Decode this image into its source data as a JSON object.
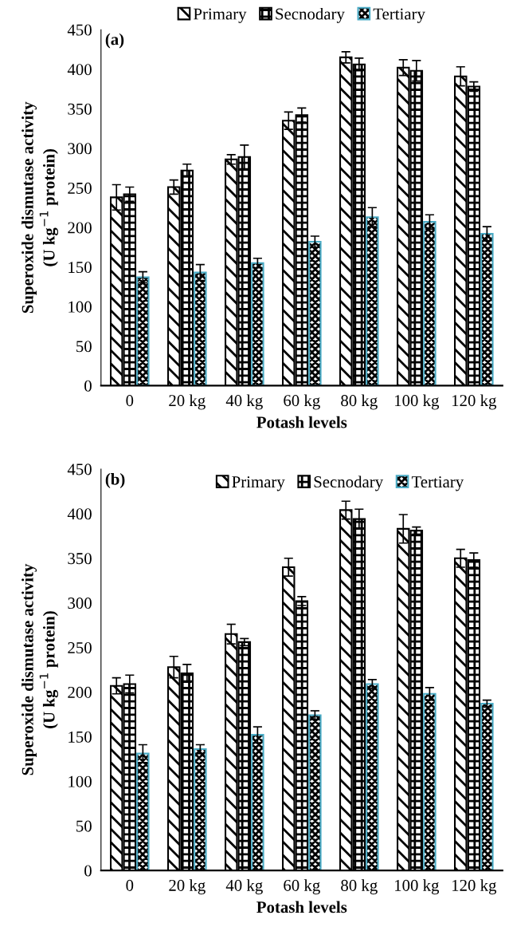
{
  "chart_data": [
    {
      "type": "bar",
      "annotations": [
        "(a)"
      ],
      "xlabel": "Potash levels",
      "ylabel": "Superoxide dismutase activity\n(U kg$^{−1}$ protein)",
      "categories": [
        "0",
        "20 kg",
        "40 kg",
        "60 kg",
        "80 kg",
        "100 kg",
        "120 kg"
      ],
      "ylim": [
        0,
        450
      ],
      "yticks": [
        0,
        50,
        100,
        150,
        200,
        250,
        300,
        350,
        400,
        450
      ],
      "legend": "top",
      "series": [
        {
          "name": "Primary",
          "color": "#000000",
          "values": [
            238,
            251,
            286,
            335,
            415,
            402,
            391
          ],
          "errors": [
            16,
            9,
            6,
            11,
            7,
            10,
            12
          ]
        },
        {
          "name": "Secnodary",
          "color": "#000000",
          "values": [
            242,
            272,
            289,
            342,
            406,
            398,
            378
          ],
          "errors": [
            9,
            8,
            15,
            9,
            8,
            13,
            6
          ]
        },
        {
          "name": "Tertiary",
          "color": "#4bacc6",
          "values": [
            137,
            143,
            155,
            182,
            213,
            207,
            192
          ],
          "errors": [
            7,
            10,
            6,
            7,
            12,
            9,
            9
          ]
        }
      ]
    },
    {
      "type": "bar",
      "annotations": [
        "(b)"
      ],
      "xlabel": "Potash levels",
      "ylabel": "Superoxide dismutase activity\n(U kg$^{−1}$ protein)",
      "categories": [
        "0",
        "20 kg",
        "40 kg",
        "60 kg",
        "80 kg",
        "100 kg",
        "120 kg"
      ],
      "ylim": [
        0,
        450
      ],
      "yticks": [
        0,
        50,
        100,
        150,
        200,
        250,
        300,
        350,
        400,
        450
      ],
      "legend": "top right",
      "series": [
        {
          "name": "Primary",
          "color": "#000000",
          "values": [
            207,
            228,
            265,
            340,
            404,
            383,
            350
          ],
          "errors": [
            9,
            12,
            11,
            10,
            10,
            16,
            10
          ]
        },
        {
          "name": "Secnodary",
          "color": "#000000",
          "values": [
            209,
            221,
            256,
            302,
            394,
            381,
            348
          ],
          "errors": [
            10,
            10,
            4,
            5,
            11,
            4,
            8
          ]
        },
        {
          "name": "Tertiary",
          "color": "#4bacc6",
          "values": [
            131,
            136,
            152,
            174,
            209,
            198,
            187
          ],
          "errors": [
            10,
            5,
            9,
            5,
            5,
            7,
            4
          ]
        }
      ]
    }
  ]
}
